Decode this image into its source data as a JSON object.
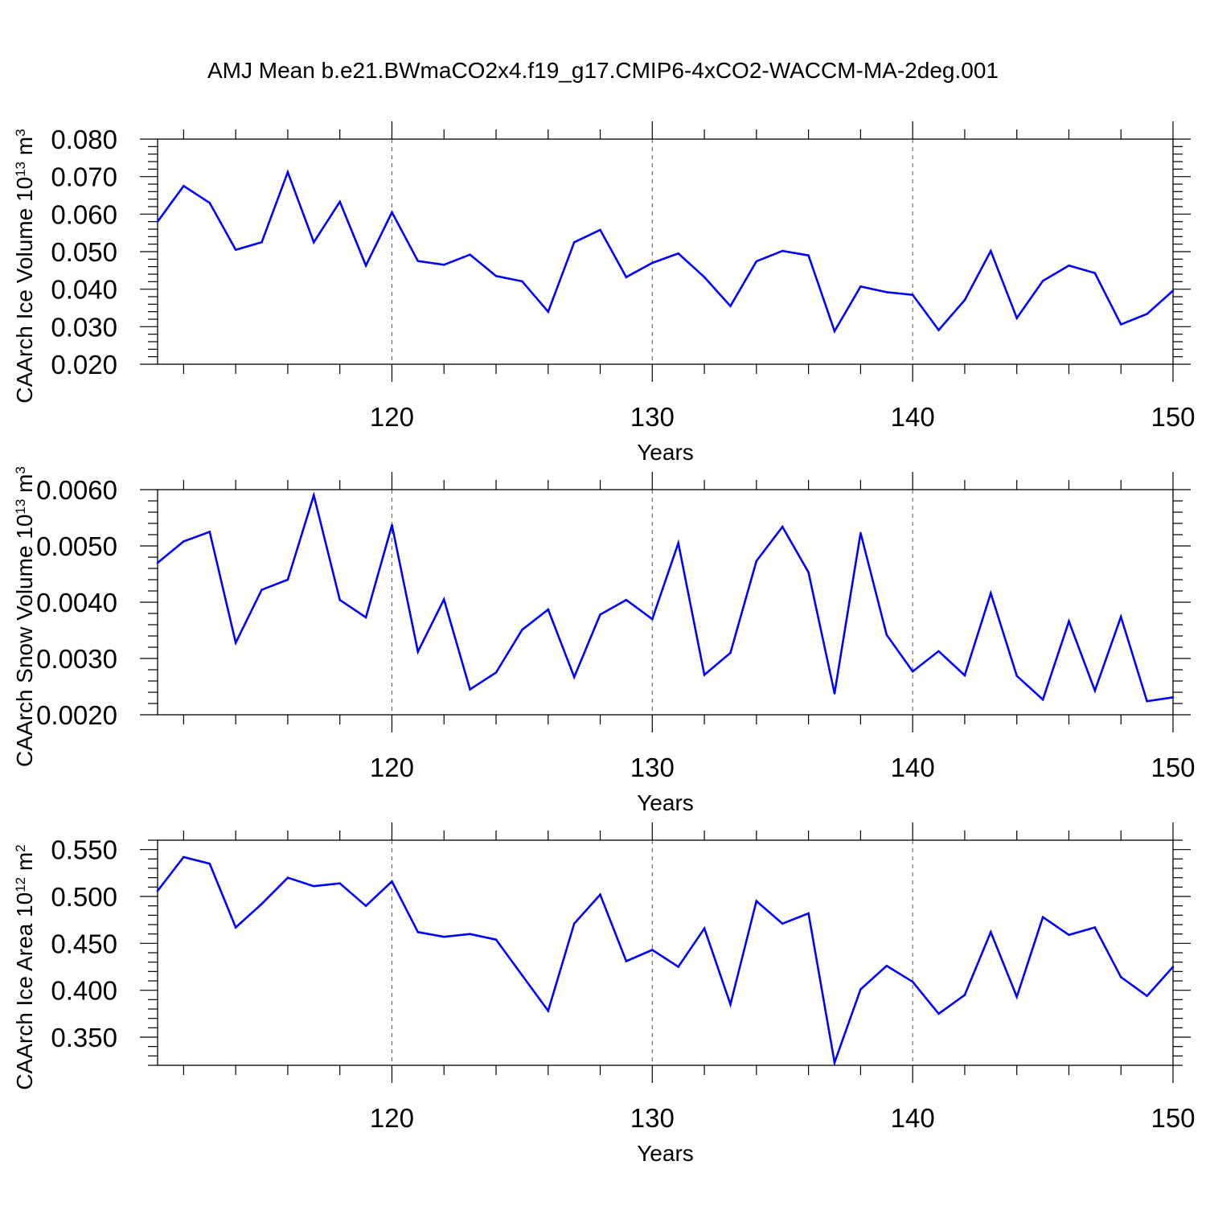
{
  "title": "AMJ Mean b.e21.BWmaCO2x4.f19_g17.CMIP6-4xCO2-WACCM-MA-2deg.001",
  "colors": {
    "series": "#0000ff",
    "axis": "#000000",
    "grid": "#555555"
  },
  "chart_data": [
    {
      "type": "line",
      "xlabel": "Years",
      "ylabel": {
        "text": "CAArch Ice Volume 10",
        "sup1": "13",
        "unit": " m",
        "sup2": "3"
      },
      "xlim": [
        111,
        150
      ],
      "ylim": [
        0.02,
        0.08
      ],
      "xticks": [
        120,
        130,
        140,
        150
      ],
      "yticks": [
        0.02,
        0.03,
        0.04,
        0.05,
        0.06,
        0.07,
        0.08
      ],
      "ytick_labels": [
        "0.020",
        "0.030",
        "0.040",
        "0.050",
        "0.060",
        "0.070",
        "0.080"
      ],
      "grid": "vertical dashed at major x ticks",
      "x": [
        111,
        112,
        113,
        114,
        115,
        116,
        117,
        118,
        119,
        120,
        121,
        122,
        123,
        124,
        125,
        126,
        127,
        128,
        129,
        130,
        131,
        132,
        133,
        134,
        135,
        136,
        137,
        138,
        139,
        140,
        141,
        142,
        143,
        144,
        145,
        146,
        147,
        148,
        149,
        150
      ],
      "y": [
        0.058,
        0.0675,
        0.063,
        0.0505,
        0.0525,
        0.0712,
        0.0525,
        0.0633,
        0.0463,
        0.0605,
        0.0475,
        0.0465,
        0.0492,
        0.0435,
        0.0421,
        0.034,
        0.0525,
        0.0558,
        0.0432,
        0.047,
        0.0495,
        0.0432,
        0.0355,
        0.0474,
        0.0502,
        0.049,
        0.0288,
        0.0407,
        0.0392,
        0.0385,
        0.0291,
        0.0371,
        0.0502,
        0.0323,
        0.0422,
        0.0463,
        0.0443,
        0.0306,
        0.0334,
        0.0396
      ]
    },
    {
      "type": "line",
      "xlabel": "Years",
      "ylabel": {
        "text": "CAArch Snow Volume 10",
        "sup1": "13",
        "unit": " m",
        "sup2": "3"
      },
      "xlim": [
        111,
        150
      ],
      "ylim": [
        0.002,
        0.006
      ],
      "xticks": [
        120,
        130,
        140,
        150
      ],
      "yticks": [
        0.002,
        0.003,
        0.004,
        0.005,
        0.006
      ],
      "ytick_labels": [
        "0.0020",
        "0.0030",
        "0.0040",
        "0.0050",
        "0.0060"
      ],
      "grid": "vertical dashed at major x ticks",
      "x": [
        111,
        112,
        113,
        114,
        115,
        116,
        117,
        118,
        119,
        120,
        121,
        122,
        123,
        124,
        125,
        126,
        127,
        128,
        129,
        130,
        131,
        132,
        133,
        134,
        135,
        136,
        137,
        138,
        139,
        140,
        141,
        142,
        143,
        144,
        145,
        146,
        147,
        148,
        149,
        150
      ],
      "y": [
        0.0047,
        0.00508,
        0.00525,
        0.00328,
        0.00422,
        0.0044,
        0.0059,
        0.00404,
        0.00373,
        0.00537,
        0.00312,
        0.00405,
        0.00245,
        0.00275,
        0.00351,
        0.00387,
        0.00267,
        0.00378,
        0.00404,
        0.0037,
        0.00505,
        0.00271,
        0.0031,
        0.00473,
        0.00534,
        0.00453,
        0.00238,
        0.00523,
        0.00342,
        0.00277,
        0.00313,
        0.0027,
        0.00416,
        0.00269,
        0.00227,
        0.00366,
        0.00243,
        0.00374,
        0.00224,
        0.00231
      ]
    },
    {
      "type": "line",
      "xlabel": "Years",
      "ylabel": {
        "text": "CAArch Ice Area 10",
        "sup1": "12",
        "unit": " m",
        "sup2": "2"
      },
      "xlim": [
        111,
        150
      ],
      "ylim": [
        0.32,
        0.56
      ],
      "xticks": [
        120,
        130,
        140,
        150
      ],
      "yticks": [
        0.35,
        0.4,
        0.45,
        0.5,
        0.55
      ],
      "ytick_labels": [
        "0.350",
        "0.400",
        "0.450",
        "0.500",
        "0.550"
      ],
      "grid": "vertical dashed at major x ticks",
      "x": [
        111,
        112,
        113,
        114,
        115,
        116,
        117,
        118,
        119,
        120,
        121,
        122,
        123,
        124,
        125,
        126,
        127,
        128,
        129,
        130,
        131,
        132,
        133,
        134,
        135,
        136,
        137,
        138,
        139,
        140,
        141,
        142,
        143,
        144,
        145,
        146,
        147,
        148,
        149,
        150
      ],
      "y": [
        0.506,
        0.542,
        0.535,
        0.467,
        0.492,
        0.52,
        0.511,
        0.514,
        0.49,
        0.516,
        0.462,
        0.457,
        0.46,
        0.454,
        0.416,
        0.378,
        0.471,
        0.502,
        0.431,
        0.443,
        0.425,
        0.466,
        0.385,
        0.495,
        0.471,
        0.482,
        0.323,
        0.401,
        0.426,
        0.409,
        0.375,
        0.395,
        0.462,
        0.393,
        0.478,
        0.459,
        0.467,
        0.414,
        0.394,
        0.425
      ]
    }
  ]
}
